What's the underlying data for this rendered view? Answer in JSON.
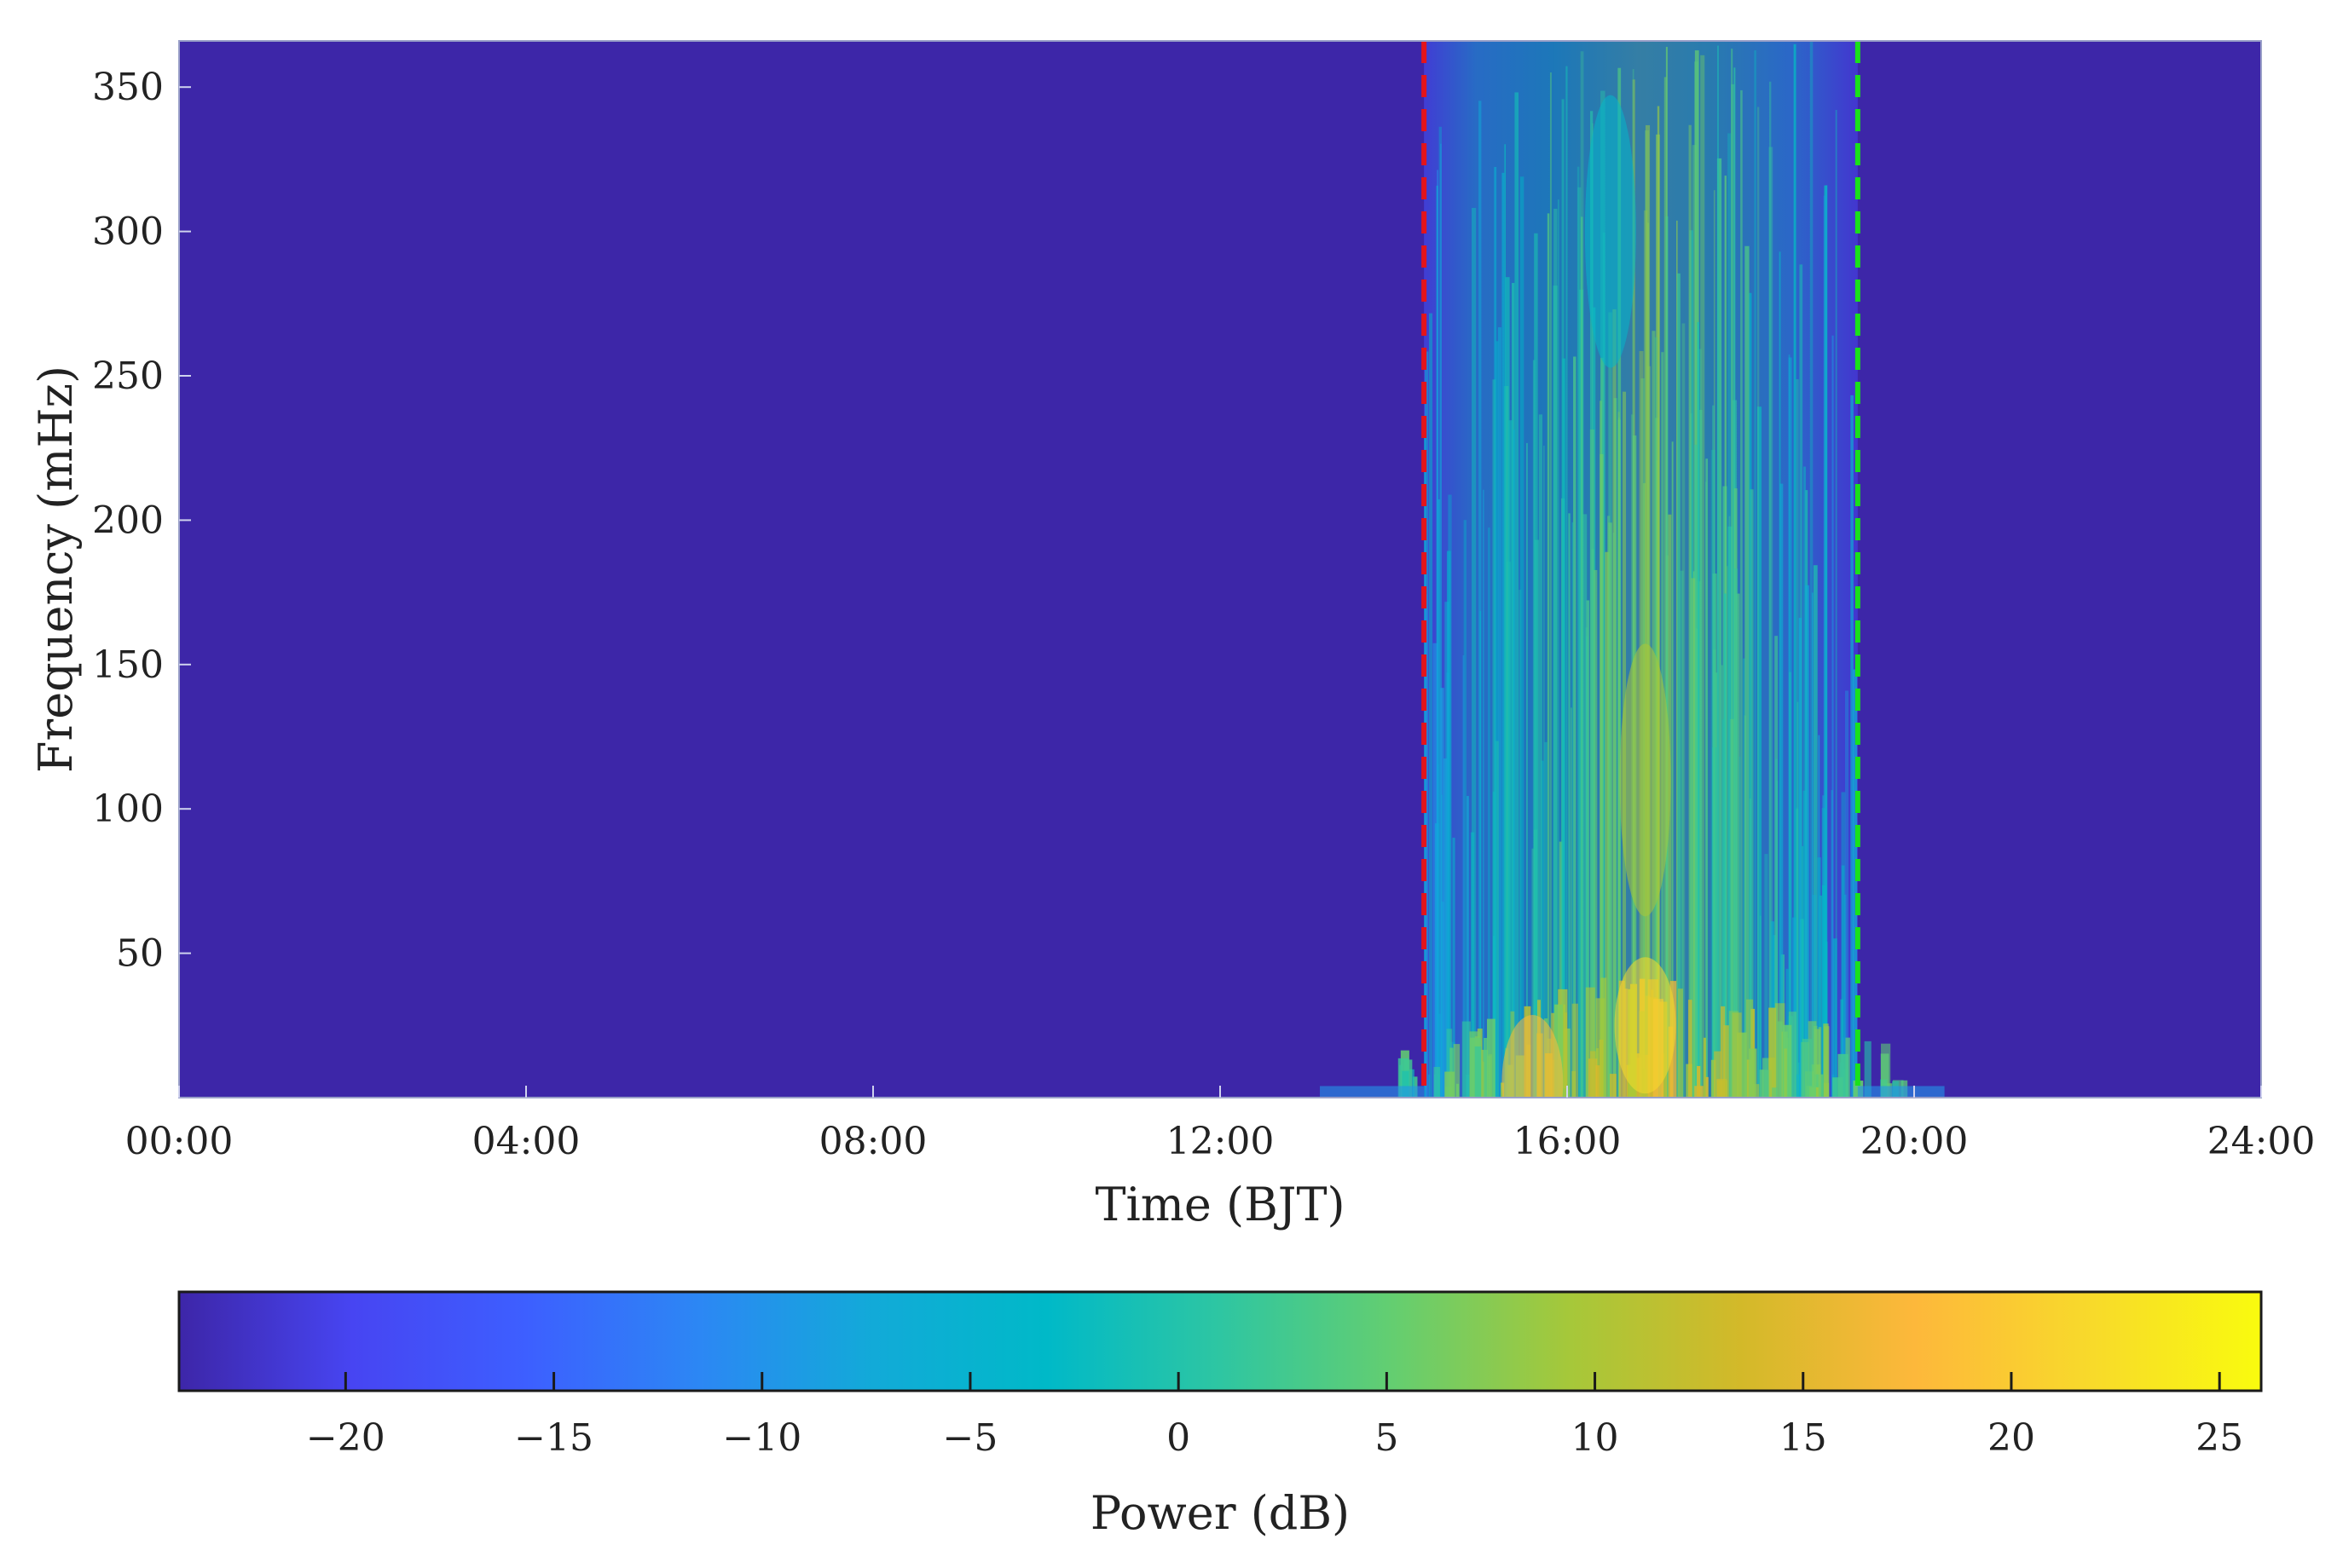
{
  "chart_data": [
    {
      "type": "heatmap",
      "title": "",
      "xlabel": "Time (BJT)",
      "ylabel": "Frequency (mHz)",
      "x_ticks": [
        "00:00",
        "04:00",
        "08:00",
        "12:00",
        "16:00",
        "20:00",
        "24:00"
      ],
      "x_tick_hours": [
        0,
        4,
        8,
        12,
        16,
        20,
        24
      ],
      "xlim_hours": [
        0,
        24
      ],
      "y_ticks": [
        50,
        100,
        150,
        200,
        250,
        300,
        350
      ],
      "ylim": [
        0,
        366
      ],
      "grid": false,
      "background_power_db": -24,
      "event_window": {
        "start_hours": 14.35,
        "end_hours": 19.35
      },
      "vertical_markers": [
        {
          "time": "14:21",
          "hours": 14.35,
          "color": "#e3141b",
          "style": "dashed"
        },
        {
          "time": "19:21",
          "hours": 19.35,
          "color": "#19e11a",
          "style": "dashed"
        }
      ],
      "hotspots": [
        {
          "time_hours": 16.9,
          "freq_mhz": 25,
          "power_db": 22
        },
        {
          "time_hours": 15.6,
          "freq_mhz": 5,
          "power_db": 18
        },
        {
          "time_hours": 16.9,
          "freq_mhz": 110,
          "power_db": 10
        },
        {
          "time_hours": 16.5,
          "freq_mhz": 300,
          "power_db": -4
        }
      ]
    },
    {
      "type": "colorbar",
      "label": "Power (dB)",
      "ticks": [
        -20,
        -15,
        -10,
        -5,
        0,
        5,
        10,
        15,
        20,
        25
      ],
      "tick_labels": [
        "−20",
        "−15",
        "−10",
        "−5",
        "0",
        "5",
        "10",
        "15",
        "20",
        "25"
      ],
      "range": [
        -24,
        26
      ],
      "colormap": "parula",
      "colors": [
        "#3d26a8",
        "#4745f2",
        "#3d5fff",
        "#2c87f4",
        "#12aad8",
        "#00b9c8",
        "#2ec6a2",
        "#64ce70",
        "#a5c83a",
        "#d3b929",
        "#fdb83b",
        "#f8d92b",
        "#f9fb0e"
      ]
    }
  ]
}
